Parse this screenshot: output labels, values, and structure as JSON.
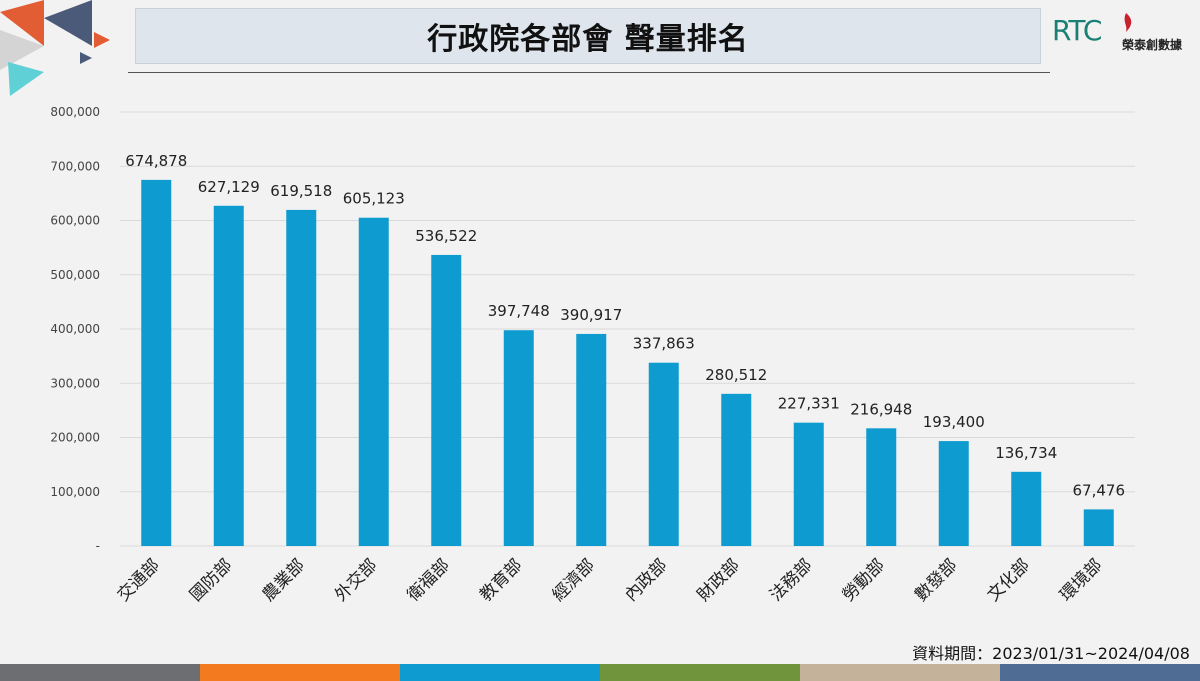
{
  "header": {
    "title": "行政院各部會  聲量排名",
    "logo_letters": "RTC",
    "logo_name": "榮泰創數據"
  },
  "footer": {
    "period_label": "資料期間：2023/01/31~2024/04/08"
  },
  "colors": {
    "bar": "#0e9bd0",
    "background": "#f2f2f2",
    "footer_bar": [
      "#6d6e71",
      "#f47a20",
      "#0e9bd0",
      "#70943b",
      "#c4b39a",
      "#4f6d94"
    ],
    "deco": [
      "#e25d33",
      "#4a5a78",
      "#5fd0d6",
      "#d4d4d4"
    ]
  },
  "chart_data": {
    "type": "bar",
    "title": "行政院各部會  聲量排名",
    "categories": [
      "交通部",
      "國防部",
      "農業部",
      "外交部",
      "衛福部",
      "教育部",
      "經濟部",
      "內政部",
      "財政部",
      "法務部",
      "勞動部",
      "數發部",
      "文化部",
      "環境部"
    ],
    "values": [
      674878,
      627129,
      619518,
      605123,
      536522,
      397748,
      390917,
      337863,
      280512,
      227331,
      216948,
      193400,
      136734,
      67476
    ],
    "value_labels": [
      "674,878",
      "627,129",
      "619,518",
      "605,123",
      "536,522",
      "397,748",
      "390,917",
      "337,863",
      "280,512",
      "227,331",
      "216,948",
      "193,400",
      "136,734",
      "67,476"
    ],
    "ylim": [
      0,
      800000
    ],
    "yticks": [
      0,
      100000,
      200000,
      300000,
      400000,
      500000,
      600000,
      700000,
      800000
    ],
    "ytick_labels": [
      "-",
      "100,000",
      "200,000",
      "300,000",
      "400,000",
      "500,000",
      "600,000",
      "700,000",
      "800,000"
    ],
    "xlabel": "",
    "ylabel": "",
    "grid": true,
    "legend": "none"
  }
}
